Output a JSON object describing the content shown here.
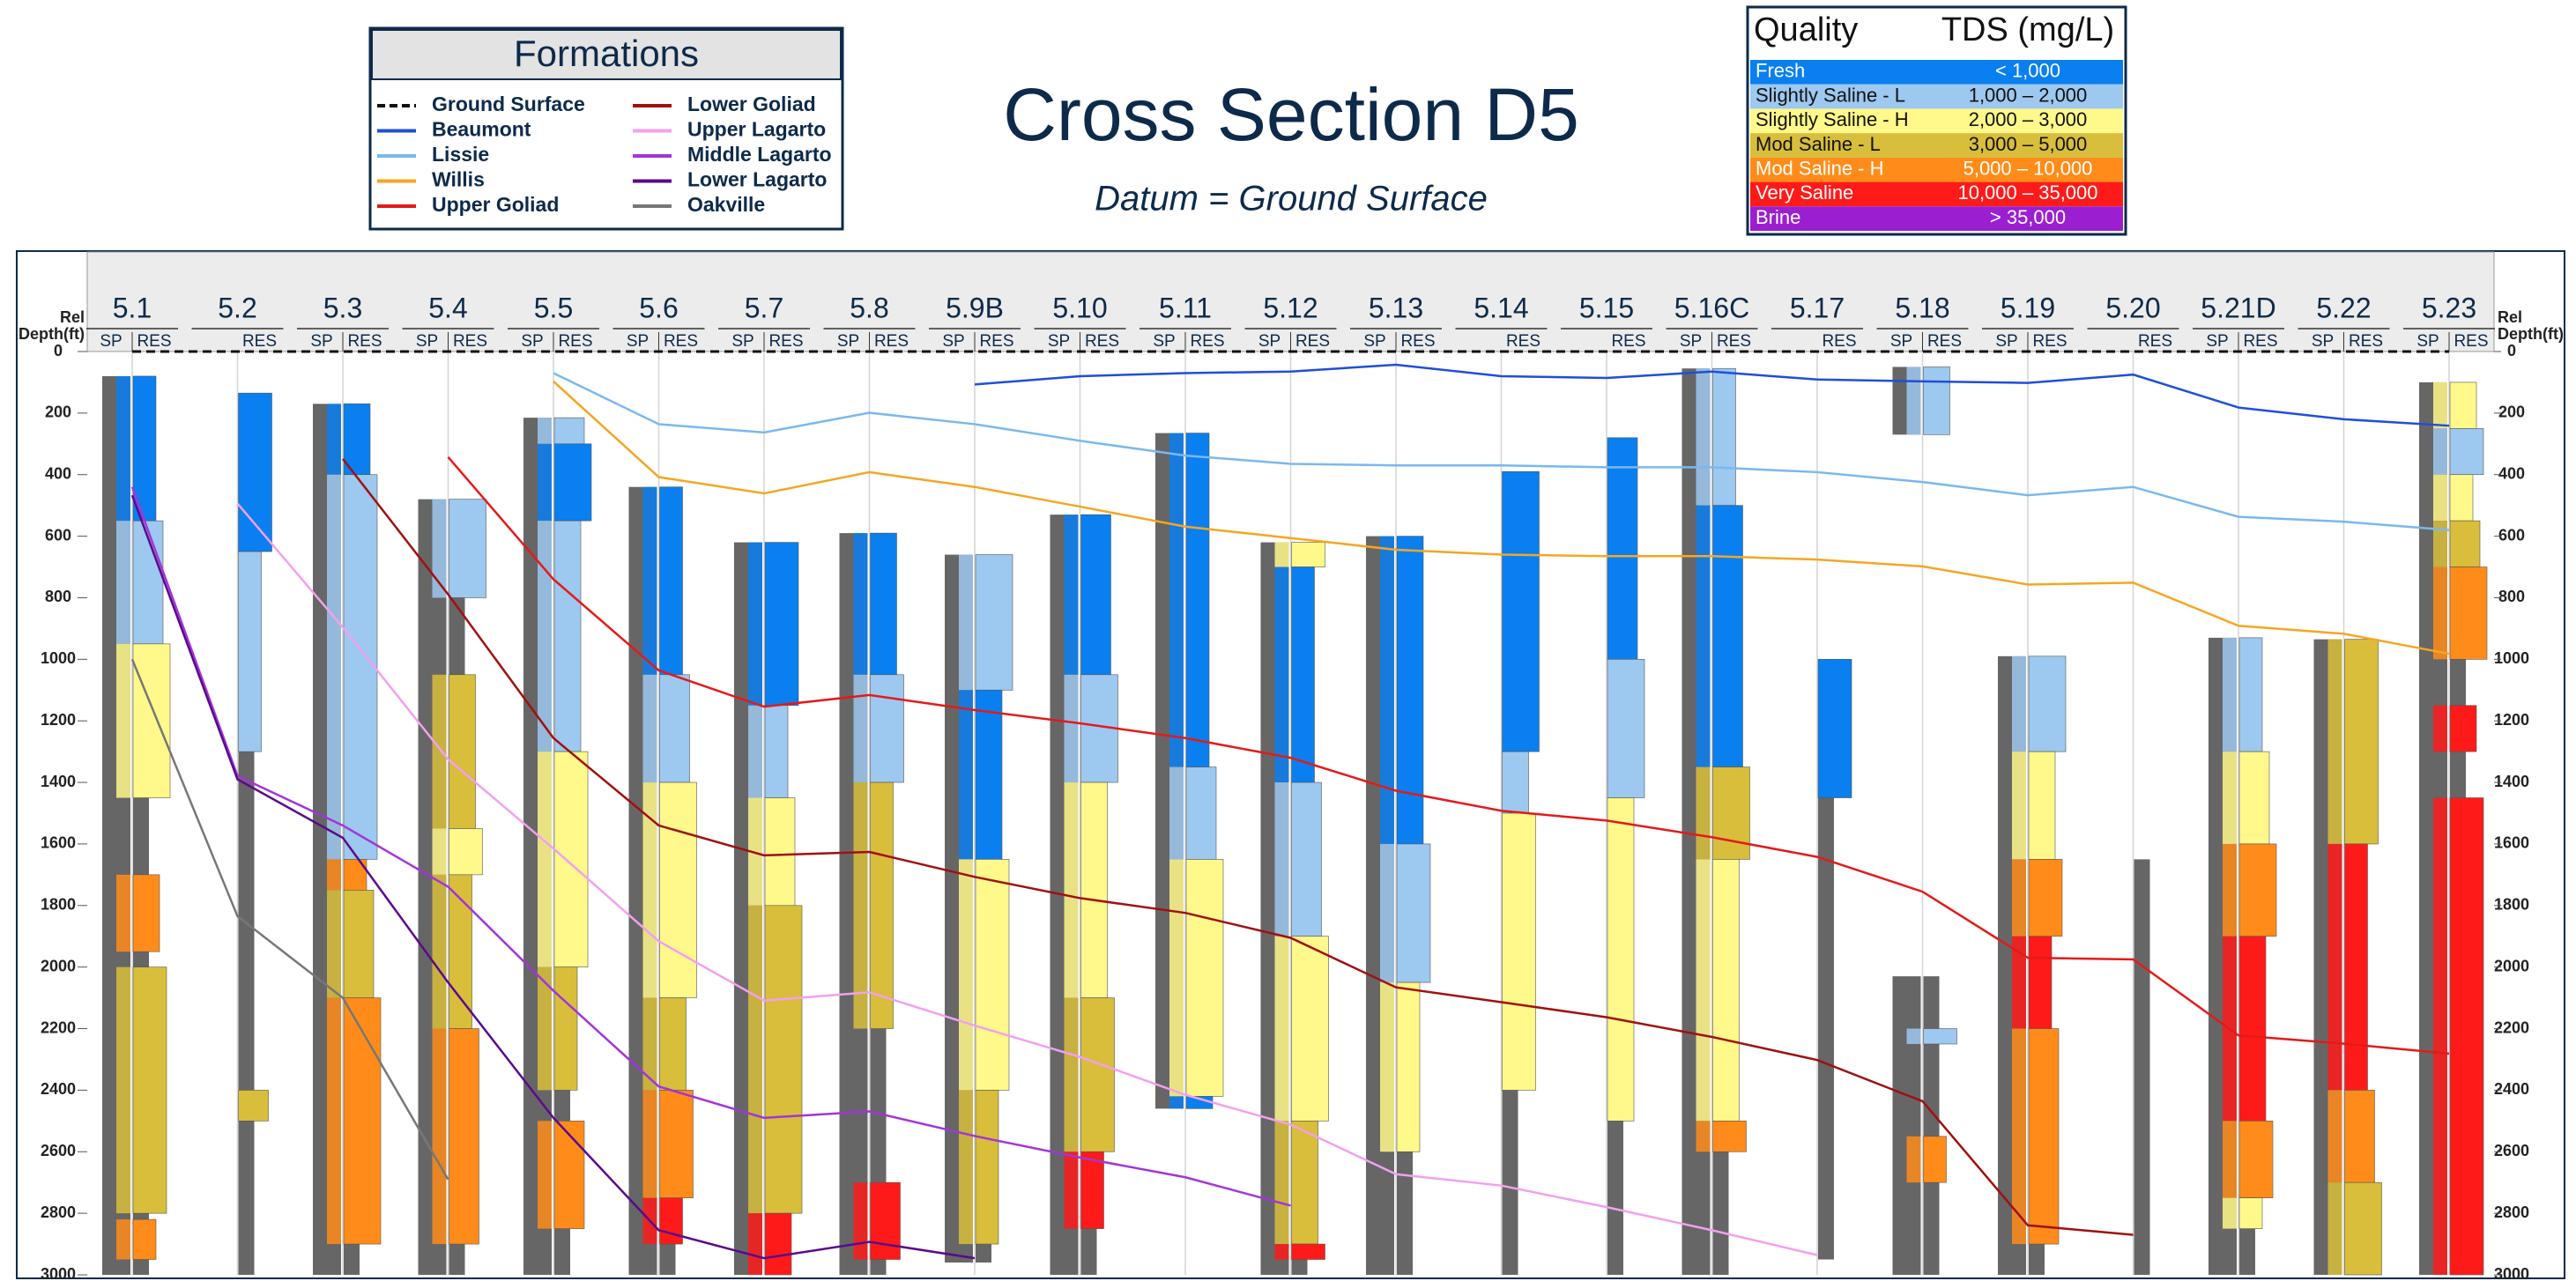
{
  "title": "Cross Section D5",
  "subtitle": "Datum = Ground Surface",
  "formations_legend_title": "Formations",
  "formations": [
    {
      "name": "Ground Surface",
      "color": "#111111",
      "dashed": true,
      "tops": [
        0,
        0,
        0,
        0,
        0,
        0,
        0,
        0,
        0,
        0,
        0,
        0,
        0,
        0,
        0,
        0,
        0,
        0,
        0,
        0,
        0,
        0,
        0
      ]
    },
    {
      "name": "Beaumont",
      "color": "#1f4fd8",
      "tops": [
        null,
        null,
        null,
        null,
        null,
        null,
        null,
        null,
        107,
        80,
        70,
        65,
        43,
        80,
        86,
        65,
        91,
        97,
        102,
        75,
        182,
        220,
        241
      ]
    },
    {
      "name": "Lissie",
      "color": "#79b8ee",
      "tops": [
        null,
        null,
        null,
        null,
        70,
        236,
        263,
        199,
        236,
        290,
        338,
        365,
        370,
        370,
        376,
        376,
        392,
        424,
        467,
        440,
        537,
        553,
        580
      ]
    },
    {
      "name": "Willis",
      "color": "#f5a623",
      "tops": [
        null,
        null,
        null,
        null,
        97,
        408,
        461,
        392,
        440,
        504,
        569,
        606,
        644,
        660,
        665,
        665,
        676,
        698,
        757,
        751,
        891,
        917,
        982
      ]
    },
    {
      "name": "Upper Goliad",
      "color": "#e31a1a",
      "tops": [
        null,
        null,
        null,
        343,
        740,
        1036,
        1154,
        1116,
        1165,
        1208,
        1256,
        1320,
        1427,
        1492,
        1524,
        1578,
        1642,
        1755,
        1970,
        1975,
        2222,
        2249,
        2281
      ]
    },
    {
      "name": "Lower Goliad",
      "color": "#a01010",
      "tops": [
        null,
        null,
        349,
        789,
        1256,
        1540,
        1637,
        1626,
        1707,
        1776,
        1824,
        1905,
        2066,
        2114,
        2163,
        2227,
        2302,
        2436,
        2839,
        2870,
        null,
        null,
        null
      ]
    },
    {
      "name": "Upper Lagarto",
      "color": "#f2a0f0",
      "tops": [
        null,
        494,
        896,
        1325,
        1615,
        1916,
        2109,
        2082,
        2190,
        2292,
        2415,
        2512,
        2673,
        2710,
        2780,
        2855,
        2936,
        null,
        null,
        null,
        null,
        null,
        null
      ]
    },
    {
      "name": "Middle Lagarto",
      "color": "#a235d8",
      "tops": [
        440,
        1379,
        1540,
        1739,
        2077,
        2388,
        2490,
        2469,
        2549,
        2619,
        2683,
        2775,
        null,
        null,
        null,
        null,
        null,
        null,
        null,
        null,
        null,
        null,
        null
      ]
    },
    {
      "name": "Lower Lagarto",
      "color": "#5a0a8a",
      "tops": [
        467,
        1390,
        1580,
        2050,
        2490,
        2855,
        2946,
        2893,
        2946,
        null,
        null,
        null,
        null,
        null,
        null,
        null,
        null,
        null,
        null,
        null,
        null,
        null,
        null
      ]
    },
    {
      "name": "Oakville",
      "color": "#777777",
      "tops": [
        1000,
        1835,
        2100,
        2690,
        null,
        null,
        null,
        null,
        null,
        null,
        null,
        null,
        null,
        null,
        null,
        null,
        null,
        null,
        null,
        null,
        null,
        null,
        null
      ]
    }
  ],
  "quality_legend": {
    "headers": [
      "Quality",
      "TDS (mg/L)"
    ],
    "rows": [
      {
        "name": "Fresh",
        "range": "< 1,000",
        "color": "#0a7ff0",
        "text_color": "#ffffff"
      },
      {
        "name": "Slightly Saline - L",
        "range": "1,000 – 2,000",
        "color": "#9dc8f0",
        "text_color": "#111111"
      },
      {
        "name": "Slightly Saline - H",
        "range": "2,000 – 3,000",
        "color": "#fff88a",
        "text_color": "#111111"
      },
      {
        "name": "Mod Saline - L",
        "range": "3,000 – 5,000",
        "color": "#d8be3a",
        "text_color": "#111111"
      },
      {
        "name": "Mod Saline - H",
        "range": "5,000 – 10,000",
        "color": "#ff8c1a",
        "text_color": "#ffffff"
      },
      {
        "name": "Very Saline",
        "range": "10,000 – 35,000",
        "color": "#ff1a1a",
        "text_color": "#ffffff"
      },
      {
        "name": "Brine",
        "range": "> 35,000",
        "color": "#9b1fd0",
        "text_color": "#ffffff"
      }
    ]
  },
  "depth_axis": {
    "label_lines": [
      "Rel",
      "Depth(ft)"
    ],
    "lim": [
      0,
      3000
    ],
    "ticks": [
      0,
      200,
      400,
      600,
      800,
      1000,
      1200,
      1400,
      1600,
      1800,
      2000,
      2200,
      2400,
      2600,
      2800,
      3000
    ]
  },
  "wells": [
    {
      "name": "5.1",
      "tracks": [
        "SP",
        "RES"
      ],
      "logged": [
        [
          80,
          3000
        ]
      ],
      "intervals": [
        [
          80,
          550,
          "Fresh"
        ],
        [
          550,
          950,
          "Slightly Saline - L"
        ],
        [
          950,
          1450,
          "Slightly Saline - H"
        ],
        [
          1700,
          1950,
          "Mod Saline - H"
        ],
        [
          2000,
          2800,
          "Mod Saline - L"
        ],
        [
          2820,
          2950,
          "Mod Saline - H"
        ]
      ]
    },
    {
      "name": "5.2",
      "tracks": [
        "RES"
      ],
      "logged": [
        [
          135,
          3000
        ]
      ],
      "intervals": [
        [
          135,
          650,
          "Fresh"
        ],
        [
          650,
          1300,
          "Slightly Saline - L"
        ],
        [
          2400,
          2500,
          "Mod Saline - L"
        ]
      ]
    },
    {
      "name": "5.3",
      "tracks": [
        "SP",
        "RES"
      ],
      "logged": [
        [
          170,
          3000
        ]
      ],
      "intervals": [
        [
          170,
          400,
          "Fresh"
        ],
        [
          400,
          1650,
          "Slightly Saline - L"
        ],
        [
          1650,
          1750,
          "Mod Saline - H"
        ],
        [
          1750,
          2100,
          "Mod Saline - L"
        ],
        [
          2100,
          2900,
          "Mod Saline - H"
        ]
      ]
    },
    {
      "name": "5.4",
      "tracks": [
        "SP",
        "RES"
      ],
      "logged": [
        [
          480,
          3000
        ]
      ],
      "intervals": [
        [
          480,
          800,
          "Slightly Saline - L"
        ],
        [
          1050,
          1550,
          "Mod Saline - L"
        ],
        [
          1550,
          1700,
          "Slightly Saline - H"
        ],
        [
          1700,
          2200,
          "Mod Saline - L"
        ],
        [
          2200,
          2900,
          "Mod Saline - H"
        ]
      ]
    },
    {
      "name": "5.5",
      "tracks": [
        "SP",
        "RES"
      ],
      "logged": [
        [
          215,
          3000
        ]
      ],
      "intervals": [
        [
          215,
          300,
          "Slightly Saline - L"
        ],
        [
          300,
          550,
          "Fresh"
        ],
        [
          550,
          1300,
          "Slightly Saline - L"
        ],
        [
          1300,
          2000,
          "Slightly Saline - H"
        ],
        [
          2000,
          2400,
          "Mod Saline - L"
        ],
        [
          2500,
          2850,
          "Mod Saline - H"
        ]
      ]
    },
    {
      "name": "5.6",
      "tracks": [
        "SP",
        "RES"
      ],
      "logged": [
        [
          440,
          3000
        ]
      ],
      "intervals": [
        [
          440,
          1050,
          "Fresh"
        ],
        [
          1050,
          1400,
          "Slightly Saline - L"
        ],
        [
          1400,
          2100,
          "Slightly Saline - H"
        ],
        [
          2100,
          2400,
          "Mod Saline - L"
        ],
        [
          2400,
          2750,
          "Mod Saline - H"
        ],
        [
          2750,
          2900,
          "Very Saline"
        ]
      ]
    },
    {
      "name": "5.7",
      "tracks": [
        "SP",
        "RES"
      ],
      "logged": [
        [
          620,
          3000
        ]
      ],
      "intervals": [
        [
          620,
          1150,
          "Fresh"
        ],
        [
          1150,
          1450,
          "Slightly Saline - L"
        ],
        [
          1450,
          1800,
          "Slightly Saline - H"
        ],
        [
          1800,
          2800,
          "Mod Saline - L"
        ],
        [
          2800,
          3000,
          "Very Saline"
        ]
      ]
    },
    {
      "name": "5.8",
      "tracks": [
        "SP",
        "RES"
      ],
      "logged": [
        [
          590,
          3000
        ]
      ],
      "intervals": [
        [
          590,
          1050,
          "Fresh"
        ],
        [
          1050,
          1400,
          "Slightly Saline - L"
        ],
        [
          1400,
          2200,
          "Mod Saline - L"
        ],
        [
          2700,
          2950,
          "Very Saline"
        ]
      ]
    },
    {
      "name": "5.9B",
      "tracks": [
        "SP",
        "RES"
      ],
      "logged": [
        [
          660,
          2960
        ]
      ],
      "intervals": [
        [
          660,
          1100,
          "Slightly Saline - L"
        ],
        [
          1100,
          1650,
          "Fresh"
        ],
        [
          1650,
          2400,
          "Slightly Saline - H"
        ],
        [
          2400,
          2900,
          "Mod Saline - L"
        ]
      ]
    },
    {
      "name": "5.10",
      "tracks": [
        "SP",
        "RES"
      ],
      "logged": [
        [
          530,
          3000
        ]
      ],
      "intervals": [
        [
          530,
          1050,
          "Fresh"
        ],
        [
          1050,
          1400,
          "Slightly Saline - L"
        ],
        [
          1400,
          2100,
          "Slightly Saline - H"
        ],
        [
          2100,
          2600,
          "Mod Saline - L"
        ],
        [
          2600,
          2850,
          "Very Saline"
        ]
      ]
    },
    {
      "name": "5.11",
      "tracks": [
        "SP",
        "RES"
      ],
      "logged": [
        [
          265,
          2460
        ]
      ],
      "intervals": [
        [
          265,
          1350,
          "Fresh"
        ],
        [
          1350,
          1650,
          "Slightly Saline - L"
        ],
        [
          1650,
          2420,
          "Slightly Saline - H"
        ],
        [
          2420,
          2460,
          "Fresh"
        ]
      ]
    },
    {
      "name": "5.12",
      "tracks": [
        "SP",
        "RES"
      ],
      "logged": [
        [
          620,
          3000
        ]
      ],
      "intervals": [
        [
          620,
          700,
          "Slightly Saline - H"
        ],
        [
          700,
          1400,
          "Fresh"
        ],
        [
          1400,
          1900,
          "Slightly Saline - L"
        ],
        [
          1900,
          2500,
          "Slightly Saline - H"
        ],
        [
          2500,
          2900,
          "Mod Saline - L"
        ],
        [
          2900,
          2950,
          "Very Saline"
        ]
      ]
    },
    {
      "name": "5.13",
      "tracks": [
        "SP",
        "RES"
      ],
      "logged": [
        [
          600,
          3000
        ]
      ],
      "intervals": [
        [
          600,
          1600,
          "Fresh"
        ],
        [
          1600,
          2050,
          "Slightly Saline - L"
        ],
        [
          2050,
          2600,
          "Slightly Saline - H"
        ]
      ]
    },
    {
      "name": "5.14",
      "tracks": [
        "RES"
      ],
      "logged": [
        [
          390,
          3000
        ]
      ],
      "intervals": [
        [
          390,
          1300,
          "Fresh"
        ],
        [
          1300,
          1500,
          "Slightly Saline - L"
        ],
        [
          1500,
          2400,
          "Slightly Saline - H"
        ]
      ]
    },
    {
      "name": "5.15",
      "tracks": [
        "RES"
      ],
      "logged": [
        [
          280,
          3000
        ]
      ],
      "intervals": [
        [
          280,
          1000,
          "Fresh"
        ],
        [
          1000,
          1450,
          "Slightly Saline - L"
        ],
        [
          1450,
          2500,
          "Slightly Saline - H"
        ]
      ]
    },
    {
      "name": "5.16C",
      "tracks": [
        "SP",
        "RES"
      ],
      "logged": [
        [
          55,
          3000
        ]
      ],
      "intervals": [
        [
          55,
          500,
          "Slightly Saline - L"
        ],
        [
          500,
          1350,
          "Fresh"
        ],
        [
          1350,
          1650,
          "Mod Saline - L"
        ],
        [
          1650,
          2500,
          "Slightly Saline - H"
        ],
        [
          2500,
          2600,
          "Mod Saline - H"
        ]
      ]
    },
    {
      "name": "5.17",
      "tracks": [
        "RES"
      ],
      "logged": [
        [
          1000,
          2950
        ]
      ],
      "intervals": [
        [
          1000,
          1450,
          "Fresh"
        ]
      ]
    },
    {
      "name": "5.18",
      "tracks": [
        "SP",
        "RES"
      ],
      "logged": [
        [
          50,
          270
        ],
        [
          2030,
          3000
        ]
      ],
      "intervals": [
        [
          50,
          270,
          "Slightly Saline - L"
        ],
        [
          2200,
          2250,
          "Slightly Saline - L"
        ],
        [
          2550,
          2700,
          "Mod Saline - H"
        ]
      ]
    },
    {
      "name": "5.19",
      "tracks": [
        "SP",
        "RES"
      ],
      "logged": [
        [
          990,
          3000
        ]
      ],
      "intervals": [
        [
          990,
          1300,
          "Slightly Saline - L"
        ],
        [
          1300,
          1650,
          "Slightly Saline - H"
        ],
        [
          1650,
          1900,
          "Mod Saline - H"
        ],
        [
          1900,
          2200,
          "Very Saline"
        ],
        [
          2200,
          2900,
          "Mod Saline - H"
        ]
      ]
    },
    {
      "name": "5.20",
      "tracks": [
        "RES"
      ],
      "logged": [
        [
          1650,
          3000
        ]
      ],
      "intervals": []
    },
    {
      "name": "5.21D",
      "tracks": [
        "SP",
        "RES"
      ],
      "logged": [
        [
          930,
          3000
        ]
      ],
      "intervals": [
        [
          930,
          1300,
          "Slightly Saline - L"
        ],
        [
          1300,
          1600,
          "Slightly Saline - H"
        ],
        [
          1600,
          1900,
          "Mod Saline - H"
        ],
        [
          1900,
          2500,
          "Very Saline"
        ],
        [
          2500,
          2750,
          "Mod Saline - H"
        ],
        [
          2750,
          2850,
          "Slightly Saline - H"
        ]
      ]
    },
    {
      "name": "5.22",
      "tracks": [
        "SP",
        "RES"
      ],
      "logged": [
        [
          935,
          3000
        ]
      ],
      "intervals": [
        [
          935,
          1600,
          "Mod Saline - L"
        ],
        [
          1600,
          2400,
          "Very Saline"
        ],
        [
          2400,
          2700,
          "Mod Saline - H"
        ],
        [
          2700,
          3000,
          "Mod Saline - L"
        ]
      ]
    },
    {
      "name": "5.23",
      "tracks": [
        "SP",
        "RES"
      ],
      "logged": [
        [
          100,
          3000
        ]
      ],
      "intervals": [
        [
          100,
          250,
          "Slightly Saline - H"
        ],
        [
          250,
          400,
          "Slightly Saline - L"
        ],
        [
          400,
          550,
          "Slightly Saline - H"
        ],
        [
          550,
          700,
          "Mod Saline - L"
        ],
        [
          700,
          1000,
          "Mod Saline - H"
        ],
        [
          1150,
          1300,
          "Very Saline"
        ],
        [
          1450,
          3000,
          "Very Saline"
        ]
      ]
    }
  ]
}
